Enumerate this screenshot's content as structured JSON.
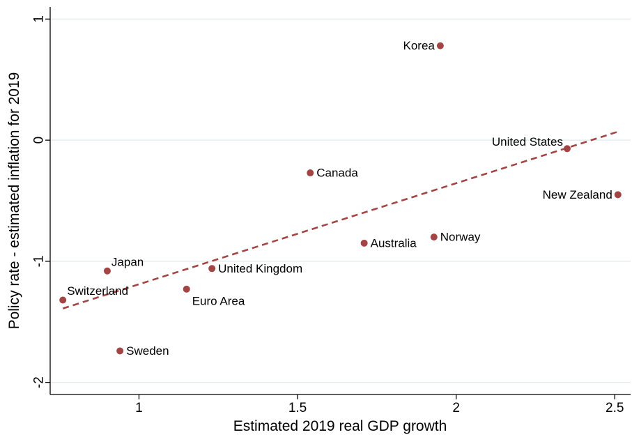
{
  "chart_data": {
    "type": "scatter",
    "xlabel": "Estimated 2019 real GDP growth",
    "ylabel": "Policy rate - estimated inflation for 2019",
    "xlim": [
      0.72,
      2.55
    ],
    "ylim": [
      -2.1,
      1.1
    ],
    "xticks": [
      1,
      1.5,
      2,
      2.5
    ],
    "xtick_labels": [
      "1",
      "1.5",
      "2",
      "2.5"
    ],
    "yticks": [
      -2,
      -1,
      0,
      1
    ],
    "ytick_labels": [
      "-2",
      "-1",
      "0",
      "1"
    ],
    "grid": true,
    "legend": "none",
    "colors": {
      "marker": "#a34545",
      "fit": "#a34545",
      "grid": "#e3ecee"
    },
    "points": [
      {
        "label": "Korea",
        "x": 1.95,
        "y": 0.78,
        "label_side": "left"
      },
      {
        "label": "United States",
        "x": 2.35,
        "y": -0.07,
        "label_side": "above-left"
      },
      {
        "label": "New Zealand",
        "x": 2.51,
        "y": -0.45,
        "label_side": "left"
      },
      {
        "label": "Canada",
        "x": 1.54,
        "y": -0.27,
        "label_side": "right"
      },
      {
        "label": "Norway",
        "x": 1.93,
        "y": -0.8,
        "label_side": "right"
      },
      {
        "label": "Australia",
        "x": 1.71,
        "y": -0.85,
        "label_side": "right"
      },
      {
        "label": "Japan",
        "x": 0.9,
        "y": -1.08,
        "label_side": "above-right"
      },
      {
        "label": "United Kingdom",
        "x": 1.23,
        "y": -1.06,
        "label_side": "right"
      },
      {
        "label": "Switzerland",
        "x": 0.76,
        "y": -1.32,
        "label_side": "above-right"
      },
      {
        "label": "Euro Area",
        "x": 1.15,
        "y": -1.23,
        "label_side": "below-right"
      },
      {
        "label": "Sweden",
        "x": 0.94,
        "y": -1.74,
        "label_side": "right"
      }
    ],
    "fit_line": {
      "style": "dashed",
      "from": {
        "x": 0.76,
        "y": -1.39
      },
      "to": {
        "x": 2.51,
        "y": 0.07
      }
    }
  }
}
